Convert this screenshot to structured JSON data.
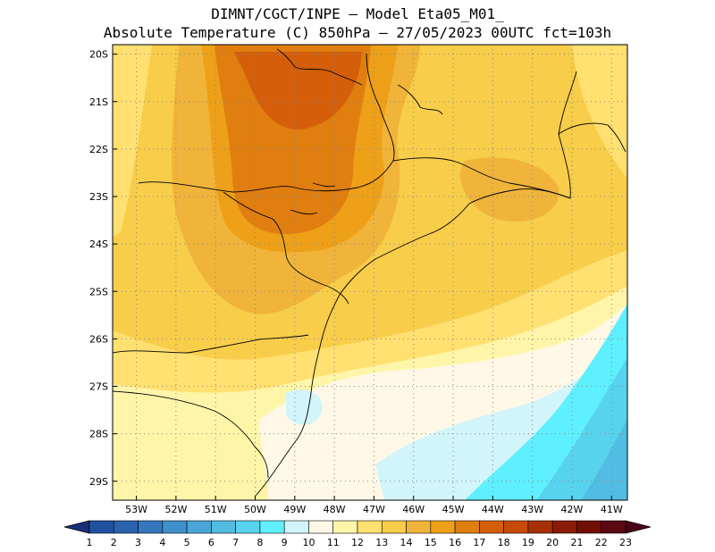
{
  "header": {
    "line1": "DIMNT/CGCT/INPE –  Model Eta05_M01_",
    "line2": "Absolute Temperature (C) 850hPa –  27/05/2023 00UTC fct=103h"
  },
  "map": {
    "lat_labels": [
      "20S",
      "21S",
      "22S",
      "23S",
      "24S",
      "25S",
      "26S",
      "27S",
      "28S",
      "29S"
    ],
    "lon_labels": [
      "53W",
      "52W",
      "51W",
      "50W",
      "49W",
      "48W",
      "47W",
      "46W",
      "45W",
      "44W",
      "43W",
      "42W",
      "41W"
    ],
    "lat_range": [
      -29.4,
      -19.8
    ],
    "lon_range": [
      -53.6,
      -40.6
    ],
    "grid": "dotted"
  },
  "colorbar": {
    "labels": [
      "1",
      "2",
      "3",
      "4",
      "5",
      "6",
      "7",
      "8",
      "9",
      "10",
      "11",
      "12",
      "13",
      "14",
      "15",
      "16",
      "17",
      "18",
      "19",
      "20",
      "21",
      "22",
      "23"
    ],
    "colors": [
      "#1f3f8f",
      "#2050a0",
      "#2b62ae",
      "#3477bd",
      "#3f8fcb",
      "#4aa6d8",
      "#52bde2",
      "#58d3ee",
      "#5ff0ff",
      "#d2f4fb",
      "#fff8e6",
      "#fff5a8",
      "#ffe070",
      "#f7cd4a",
      "#f0b43a",
      "#eda018",
      "#e07e10",
      "#d45e0a",
      "#c84a08",
      "#a83006",
      "#8b1a06",
      "#701004",
      "#5a0814"
    ],
    "low_arrow": "#1a2f7a",
    "high_arrow": "#4a0418"
  },
  "field_colors": {
    "t10": "#5ff0ff",
    "t11": "#d2f4fb",
    "t12": "#fff8e6",
    "t13": "#fff5a8",
    "t14": "#ffe070",
    "t15": "#f7cd4a",
    "t16": "#f0b43a",
    "t17": "#eda018",
    "t18": "#e07e10",
    "t19": "#d45e0a",
    "t8": "#52bde2",
    "t9": "#58d3ee"
  }
}
